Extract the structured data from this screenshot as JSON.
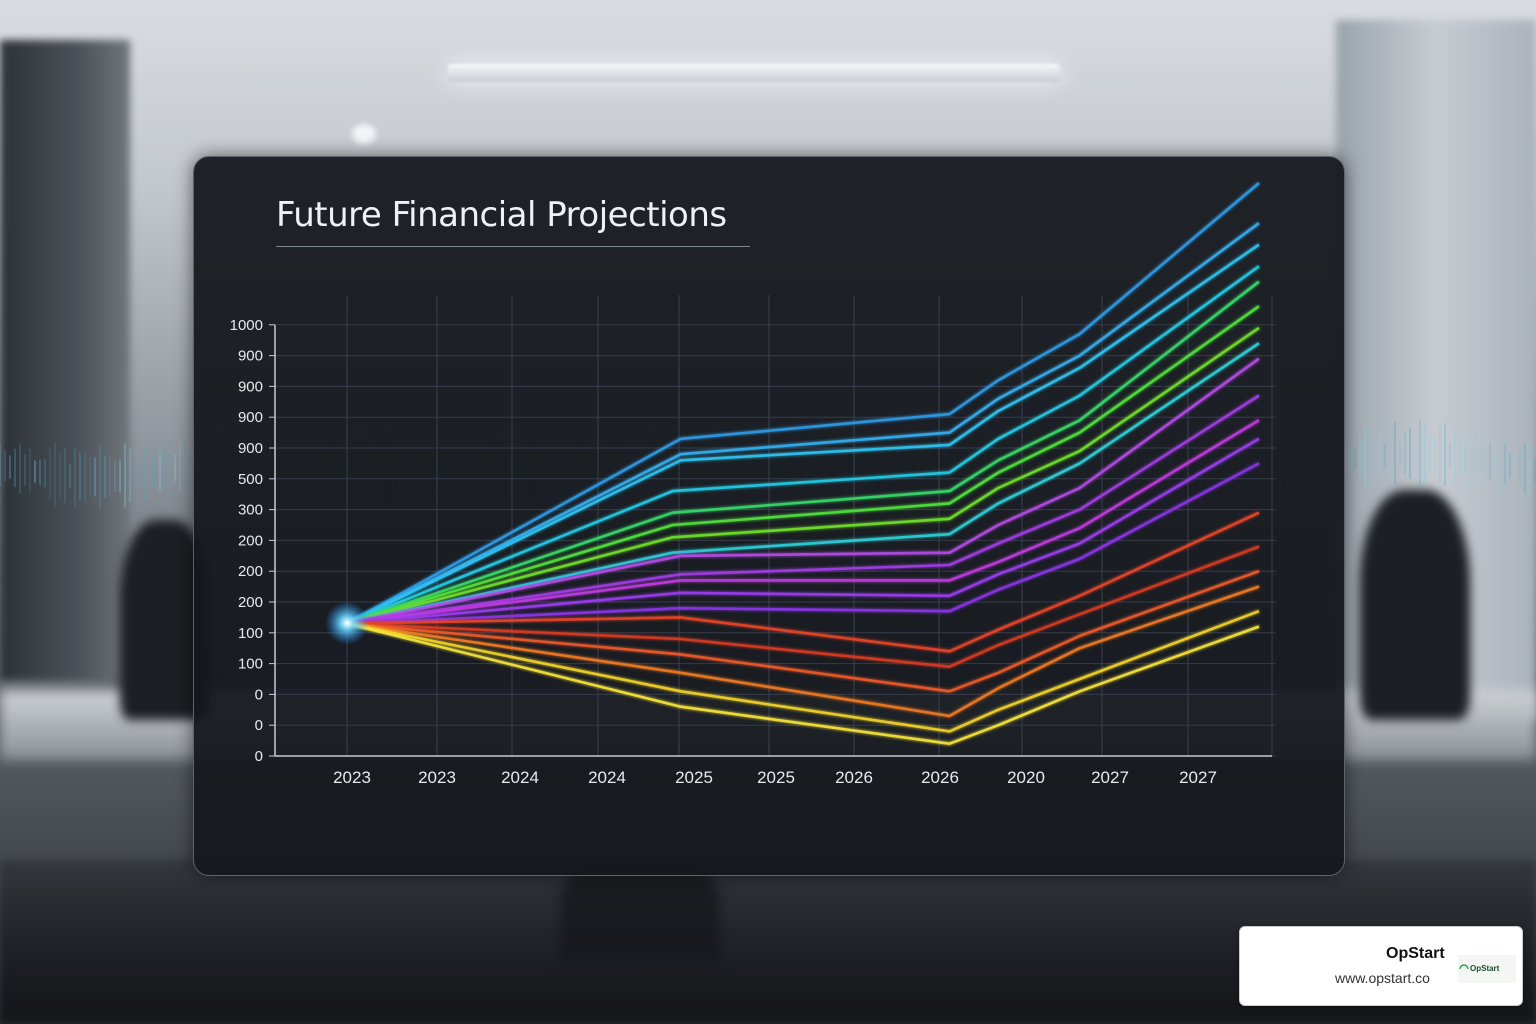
{
  "brand": {
    "name": "OpStart",
    "url": "www.opstart.co",
    "logo_text": "OpStart"
  },
  "chart_data": {
    "type": "line",
    "title": "Future Financial Projections",
    "xlabel": "",
    "ylabel": "",
    "x_tick_labels": [
      "2023",
      "2023",
      "2024",
      "2024",
      "2025",
      "2025",
      "2026",
      "2026",
      "2020",
      "2027",
      "2027"
    ],
    "y_tick_labels": [
      "0",
      "0",
      "0",
      "100",
      "100",
      "200",
      "200",
      "200",
      "300",
      "500",
      "900",
      "900",
      "900",
      "900",
      "1000"
    ],
    "x_range": [
      0,
      11.3
    ],
    "y_range": [
      0,
      14
    ],
    "grid": true,
    "legend": "none",
    "series": [
      {
        "color": "#2f9be6",
        "points": [
          [
            0,
            4.3
          ],
          [
            4.1,
            10.3
          ],
          [
            7.4,
            11.1
          ],
          [
            8,
            12.2
          ],
          [
            9,
            13.7
          ],
          [
            11.2,
            18.6
          ]
        ]
      },
      {
        "color": "#34aef0",
        "points": [
          [
            0,
            4.3
          ],
          [
            4.1,
            9.8
          ],
          [
            7.4,
            10.5
          ],
          [
            8,
            11.6
          ],
          [
            9,
            13
          ],
          [
            11.2,
            17.3
          ]
        ]
      },
      {
        "color": "#2fc4f2",
        "points": [
          [
            0,
            4.3
          ],
          [
            4.1,
            9.6
          ],
          [
            7.4,
            10.1
          ],
          [
            8,
            11.2
          ],
          [
            9,
            12.6
          ],
          [
            11.2,
            16.6
          ]
        ]
      },
      {
        "color": "#22cce6",
        "points": [
          [
            0,
            4.3
          ],
          [
            4,
            8.6
          ],
          [
            7.4,
            9.2
          ],
          [
            8,
            10.3
          ],
          [
            9,
            11.7
          ],
          [
            11.2,
            15.9
          ]
        ]
      },
      {
        "color": "#38d86a",
        "points": [
          [
            0,
            4.3
          ],
          [
            4,
            7.9
          ],
          [
            7.4,
            8.6
          ],
          [
            8,
            9.6
          ],
          [
            9,
            10.9
          ],
          [
            11.2,
            15.4
          ]
        ]
      },
      {
        "color": "#4fe23c",
        "points": [
          [
            0,
            4.3
          ],
          [
            4,
            7.5
          ],
          [
            7.4,
            8.2
          ],
          [
            8,
            9.2
          ],
          [
            9,
            10.5
          ],
          [
            11.2,
            14.6
          ]
        ]
      },
      {
        "color": "#6ee02c",
        "points": [
          [
            0,
            4.3
          ],
          [
            4,
            7.1
          ],
          [
            7.4,
            7.7
          ],
          [
            8,
            8.7
          ],
          [
            9,
            9.9
          ],
          [
            11.2,
            13.9
          ]
        ]
      },
      {
        "color": "#2ed0d8",
        "points": [
          [
            0,
            4.3
          ],
          [
            4,
            6.6
          ],
          [
            7.4,
            7.2
          ],
          [
            8,
            8.2
          ],
          [
            9,
            9.5
          ],
          [
            11.2,
            13.4
          ]
        ]
      },
      {
        "color": "#b54ce8",
        "points": [
          [
            0,
            4.3
          ],
          [
            4.1,
            6.5
          ],
          [
            7.4,
            6.6
          ],
          [
            8,
            7.5
          ],
          [
            9,
            8.7
          ],
          [
            11.2,
            12.9
          ]
        ]
      },
      {
        "color": "#a23ee6",
        "points": [
          [
            0,
            4.3
          ],
          [
            4.1,
            5.9
          ],
          [
            7.4,
            6.2
          ],
          [
            8,
            6.9
          ],
          [
            9,
            8
          ],
          [
            11.2,
            11.7
          ]
        ]
      },
      {
        "color": "#c03ae0",
        "points": [
          [
            0,
            4.3
          ],
          [
            4.1,
            5.7
          ],
          [
            7.4,
            5.7
          ],
          [
            8,
            6.3
          ],
          [
            9,
            7.4
          ],
          [
            11.2,
            10.9
          ]
        ]
      },
      {
        "color": "#9b3cf0",
        "points": [
          [
            0,
            4.3
          ],
          [
            4.1,
            5.3
          ],
          [
            7.4,
            5.2
          ],
          [
            8,
            5.9
          ],
          [
            9,
            6.9
          ],
          [
            11.2,
            10.3
          ]
        ]
      },
      {
        "color": "#8a36e8",
        "points": [
          [
            0,
            4.3
          ],
          [
            4.1,
            4.8
          ],
          [
            7.4,
            4.7
          ],
          [
            8,
            5.4
          ],
          [
            9,
            6.4
          ],
          [
            11.2,
            9.5
          ]
        ]
      },
      {
        "color": "#e8452c",
        "points": [
          [
            0,
            4.3
          ],
          [
            4.1,
            4.5
          ],
          [
            7.4,
            3.4
          ],
          [
            8,
            4.1
          ],
          [
            9,
            5.2
          ],
          [
            11.2,
            7.9
          ]
        ]
      },
      {
        "color": "#d83a24",
        "points": [
          [
            0,
            4.3
          ],
          [
            4.1,
            3.8
          ],
          [
            7.4,
            2.9
          ],
          [
            8,
            3.6
          ],
          [
            9,
            4.6
          ],
          [
            11.2,
            6.8
          ]
        ]
      },
      {
        "color": "#ee5a2a",
        "points": [
          [
            0,
            4.3
          ],
          [
            4.1,
            3.3
          ],
          [
            7.4,
            2.1
          ],
          [
            8,
            2.7
          ],
          [
            9,
            3.9
          ],
          [
            11.2,
            6
          ]
        ]
      },
      {
        "color": "#f07a22",
        "points": [
          [
            0,
            4.3
          ],
          [
            4.1,
            2.7
          ],
          [
            7.4,
            1.3
          ],
          [
            8,
            2.2
          ],
          [
            9,
            3.5
          ],
          [
            11.2,
            5.5
          ]
        ]
      },
      {
        "color": "#f2d22c",
        "points": [
          [
            0,
            4.3
          ],
          [
            4.1,
            2.1
          ],
          [
            7.4,
            0.8
          ],
          [
            8,
            1.5
          ],
          [
            9,
            2.5
          ],
          [
            11.2,
            4.7
          ]
        ]
      },
      {
        "color": "#f6e43a",
        "points": [
          [
            0,
            4.3
          ],
          [
            4.1,
            1.6
          ],
          [
            7.4,
            0.4
          ],
          [
            8,
            1
          ],
          [
            9,
            2.1
          ],
          [
            11.2,
            4.2
          ]
        ]
      }
    ]
  }
}
